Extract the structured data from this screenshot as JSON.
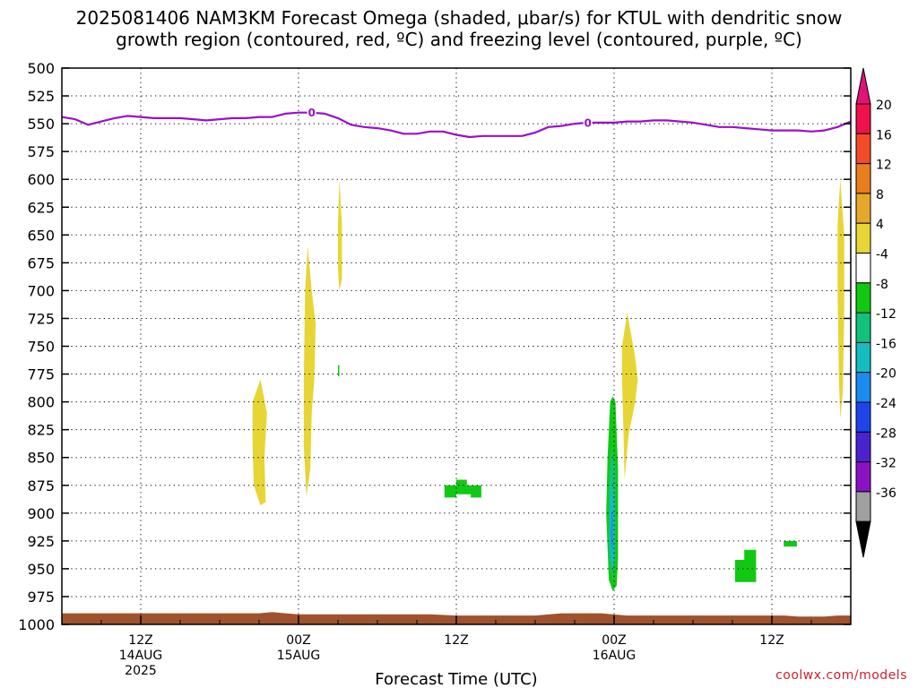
{
  "title_line1": "2025081406 NAM3KM Forecast Omega (shaded, μbar/s) for KTUL with dendritic snow",
  "title_line2": "growth region (contoured, red, ºC) and freezing level (contoured, purple, ºC)",
  "credit": "coolwx.com/models",
  "chart_data": {
    "type": "heatmap",
    "title": "2025081406 NAM3KM Forecast Omega (shaded, μbar/s) for KTUL with dendritic snow growth region (contoured, red, ºC) and freezing level (contoured, purple, ºC)",
    "xlabel": "Forecast Time (UTC)",
    "ylabel": "",
    "x_range_hours": [
      0,
      60
    ],
    "ylim": [
      1000,
      500
    ],
    "y_ticks": [
      500,
      525,
      550,
      575,
      600,
      625,
      650,
      675,
      700,
      725,
      750,
      775,
      800,
      825,
      850,
      875,
      900,
      925,
      950,
      975,
      1000
    ],
    "x_ticks": [
      {
        "hour": 6,
        "lines": [
          "12Z",
          "14AUG",
          "2025"
        ]
      },
      {
        "hour": 18,
        "lines": [
          "00Z",
          "15AUG"
        ]
      },
      {
        "hour": 30,
        "lines": [
          "12Z"
        ]
      },
      {
        "hour": 42,
        "lines": [
          "00Z",
          "16AUG"
        ]
      },
      {
        "hour": 54,
        "lines": [
          "12Z"
        ]
      }
    ],
    "grid": true,
    "colorbar": {
      "labels": [
        "20",
        "16",
        "12",
        "8",
        "4",
        "-4",
        "-8",
        "-12",
        "-16",
        "-20",
        "-24",
        "-28",
        "-32",
        "-36"
      ],
      "colors": [
        "#f0104a",
        "#f44c28",
        "#ea7d1c",
        "#e6a82a",
        "#e6d534",
        "#ffffff",
        "#11c913",
        "#12c27a",
        "#16bcc0",
        "#1a8cef",
        "#1f45e8",
        "#4b22d0",
        "#8a12c5",
        "#a0a0a0"
      ],
      "top_cap": "#e1127a",
      "bottom_cap": "#000000"
    },
    "freezing_level": {
      "color": "#9a10c9",
      "label": "0",
      "label_points": [
        {
          "hour": 19,
          "hPa": 540
        },
        {
          "hour": 40,
          "hPa": 549
        }
      ],
      "points": [
        [
          0,
          544
        ],
        [
          1,
          546
        ],
        [
          2,
          551
        ],
        [
          3,
          548
        ],
        [
          4,
          545
        ],
        [
          5,
          543
        ],
        [
          6,
          544
        ],
        [
          7,
          545
        ],
        [
          8,
          545
        ],
        [
          9,
          545
        ],
        [
          10,
          546
        ],
        [
          11,
          547
        ],
        [
          12,
          546
        ],
        [
          13,
          545
        ],
        [
          14,
          545
        ],
        [
          15,
          544
        ],
        [
          16,
          544
        ],
        [
          17,
          541
        ],
        [
          18,
          540
        ],
        [
          19,
          540
        ],
        [
          20,
          541
        ],
        [
          21,
          545
        ],
        [
          22,
          551
        ],
        [
          23,
          553
        ],
        [
          24,
          554
        ],
        [
          25,
          556
        ],
        [
          26,
          559
        ],
        [
          27,
          559
        ],
        [
          28,
          557
        ],
        [
          29,
          557
        ],
        [
          30,
          560
        ],
        [
          31,
          562
        ],
        [
          32,
          561
        ],
        [
          33,
          561
        ],
        [
          34,
          561
        ],
        [
          35,
          561
        ],
        [
          36,
          558
        ],
        [
          37,
          553
        ],
        [
          38,
          552
        ],
        [
          39,
          550
        ],
        [
          40,
          549
        ],
        [
          41,
          549
        ],
        [
          42,
          549
        ],
        [
          43,
          548
        ],
        [
          44,
          548
        ],
        [
          45,
          547
        ],
        [
          46,
          547
        ],
        [
          47,
          548
        ],
        [
          48,
          549
        ],
        [
          49,
          551
        ],
        [
          50,
          553
        ],
        [
          51,
          553
        ],
        [
          52,
          554
        ],
        [
          53,
          555
        ],
        [
          54,
          556
        ],
        [
          55,
          556
        ],
        [
          56,
          556
        ],
        [
          57,
          557
        ],
        [
          58,
          556
        ],
        [
          59,
          553
        ],
        [
          60,
          548
        ]
      ]
    },
    "omega_regions": [
      {
        "value_range": [
          4,
          8
        ],
        "color": "#e6d534",
        "points": [
          [
            14.5,
            800
          ],
          [
            15.1,
            780
          ],
          [
            15.6,
            810
          ],
          [
            15.4,
            850
          ],
          [
            15.5,
            890
          ],
          [
            15.1,
            893
          ],
          [
            14.6,
            875
          ],
          [
            14.5,
            840
          ]
        ]
      },
      {
        "value_range": [
          4,
          8
        ],
        "color": "#e6d534",
        "points": [
          [
            18.6,
            885
          ],
          [
            18.4,
            840
          ],
          [
            18.4,
            780
          ],
          [
            18.5,
            700
          ],
          [
            18.7,
            660
          ],
          [
            19.0,
            700
          ],
          [
            19.3,
            730
          ],
          [
            19.2,
            780
          ],
          [
            19.0,
            810
          ],
          [
            18.9,
            860
          ]
        ]
      },
      {
        "value_range": [
          4,
          8
        ],
        "color": "#e6d534",
        "points": [
          [
            21.1,
            600
          ],
          [
            21.3,
            640
          ],
          [
            21.3,
            690
          ],
          [
            21.1,
            700
          ],
          [
            21.0,
            680
          ],
          [
            21.0,
            640
          ]
        ]
      },
      {
        "value_range": [
          4,
          8
        ],
        "color": "#e6d534",
        "points": [
          [
            43.0,
            720
          ],
          [
            43.6,
            760
          ],
          [
            43.8,
            780
          ],
          [
            43.6,
            800
          ],
          [
            43.1,
            830
          ],
          [
            42.8,
            870
          ],
          [
            42.7,
            820
          ],
          [
            42.6,
            780
          ],
          [
            42.6,
            750
          ]
        ]
      },
      {
        "value_range": [
          4,
          8
        ],
        "color": "#e6d534",
        "points": [
          [
            59.2,
            600
          ],
          [
            59.5,
            650
          ],
          [
            59.5,
            720
          ],
          [
            59.4,
            790
          ],
          [
            59.2,
            815
          ],
          [
            59.1,
            780
          ],
          [
            59.0,
            700
          ],
          [
            59.0,
            640
          ]
        ]
      },
      {
        "value_range": [
          -8,
          -4
        ],
        "color": "#11c913",
        "points": [
          [
            21.0,
            767
          ],
          [
            21.1,
            767
          ],
          [
            21.1,
            777
          ],
          [
            21.0,
            777
          ]
        ]
      },
      {
        "value_range": [
          -8,
          -4
        ],
        "color": "#11c913",
        "points": [
          [
            29.1,
            875
          ],
          [
            30.0,
            875
          ],
          [
            30.0,
            870
          ],
          [
            30.8,
            870
          ],
          [
            30.8,
            875
          ],
          [
            31.9,
            875
          ],
          [
            31.9,
            886
          ],
          [
            31.1,
            886
          ],
          [
            31.1,
            883
          ],
          [
            30.0,
            883
          ],
          [
            30.0,
            886
          ],
          [
            29.1,
            886
          ]
        ]
      },
      {
        "value_range": [
          -8,
          -4
        ],
        "color": "#11c913",
        "points": [
          [
            41.7,
            800
          ],
          [
            41.9,
            795
          ],
          [
            42.1,
            800
          ],
          [
            42.3,
            860
          ],
          [
            42.3,
            940
          ],
          [
            42.2,
            965
          ],
          [
            41.9,
            970
          ],
          [
            41.6,
            960
          ],
          [
            41.4,
            900
          ],
          [
            41.5,
            850
          ]
        ]
      },
      {
        "value_range": [
          -8,
          -4
        ],
        "color": "#11c913",
        "points": [
          [
            51.2,
            942
          ],
          [
            51.9,
            942
          ],
          [
            51.9,
            933
          ],
          [
            52.8,
            933
          ],
          [
            52.8,
            962
          ],
          [
            51.2,
            962
          ]
        ]
      },
      {
        "value_range": [
          -8,
          -4
        ],
        "color": "#11c913",
        "points": [
          [
            54.9,
            925
          ],
          [
            55.9,
            925
          ],
          [
            55.9,
            930
          ],
          [
            54.9,
            930
          ]
        ]
      },
      {
        "value_range": [
          -12,
          -8
        ],
        "color": "#12c27a",
        "points": [
          [
            41.8,
            840
          ],
          [
            42.1,
            860
          ],
          [
            42.1,
            940
          ],
          [
            41.9,
            960
          ],
          [
            41.6,
            940
          ],
          [
            41.6,
            880
          ]
        ]
      },
      {
        "value_range": [
          -16,
          -12
        ],
        "color": "#16bcc0",
        "points": [
          [
            41.75,
            870
          ],
          [
            42.0,
            890
          ],
          [
            42.0,
            940
          ],
          [
            41.85,
            950
          ],
          [
            41.7,
            930
          ],
          [
            41.65,
            900
          ]
        ]
      },
      {
        "value_range": [
          -20,
          -16
        ],
        "color": "#1a8cef",
        "points": [
          [
            41.8,
            895
          ],
          [
            41.9,
            905
          ],
          [
            41.9,
            930
          ],
          [
            41.82,
            935
          ],
          [
            41.74,
            920
          ]
        ]
      }
    ],
    "terrain": {
      "color": "#a0522d",
      "points": [
        [
          0,
          990
        ],
        [
          15,
          990
        ],
        [
          16,
          989
        ],
        [
          17,
          990
        ],
        [
          18,
          991
        ],
        [
          28,
          991
        ],
        [
          30,
          992
        ],
        [
          36,
          992
        ],
        [
          38,
          990
        ],
        [
          41,
          990
        ],
        [
          43,
          992
        ],
        [
          55,
          992
        ],
        [
          56,
          993
        ],
        [
          58,
          993
        ],
        [
          59,
          992
        ],
        [
          60,
          992
        ]
      ]
    }
  }
}
